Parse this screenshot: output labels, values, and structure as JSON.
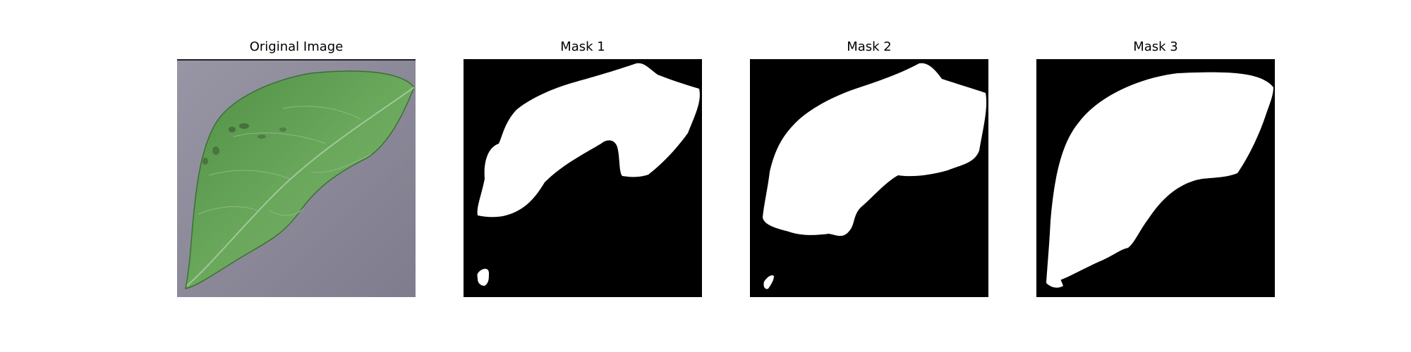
{
  "figure": {
    "panels": [
      {
        "title": "Original Image"
      },
      {
        "title": "Mask 1"
      },
      {
        "title": "Mask 2"
      },
      {
        "title": "Mask 3"
      }
    ]
  },
  "colors": {
    "background": "#8b8a98",
    "leaf": "#5e9e52",
    "leaf_dark": "#3f7a3a",
    "mask_fg": "#ffffff",
    "mask_bg": "#000000"
  }
}
